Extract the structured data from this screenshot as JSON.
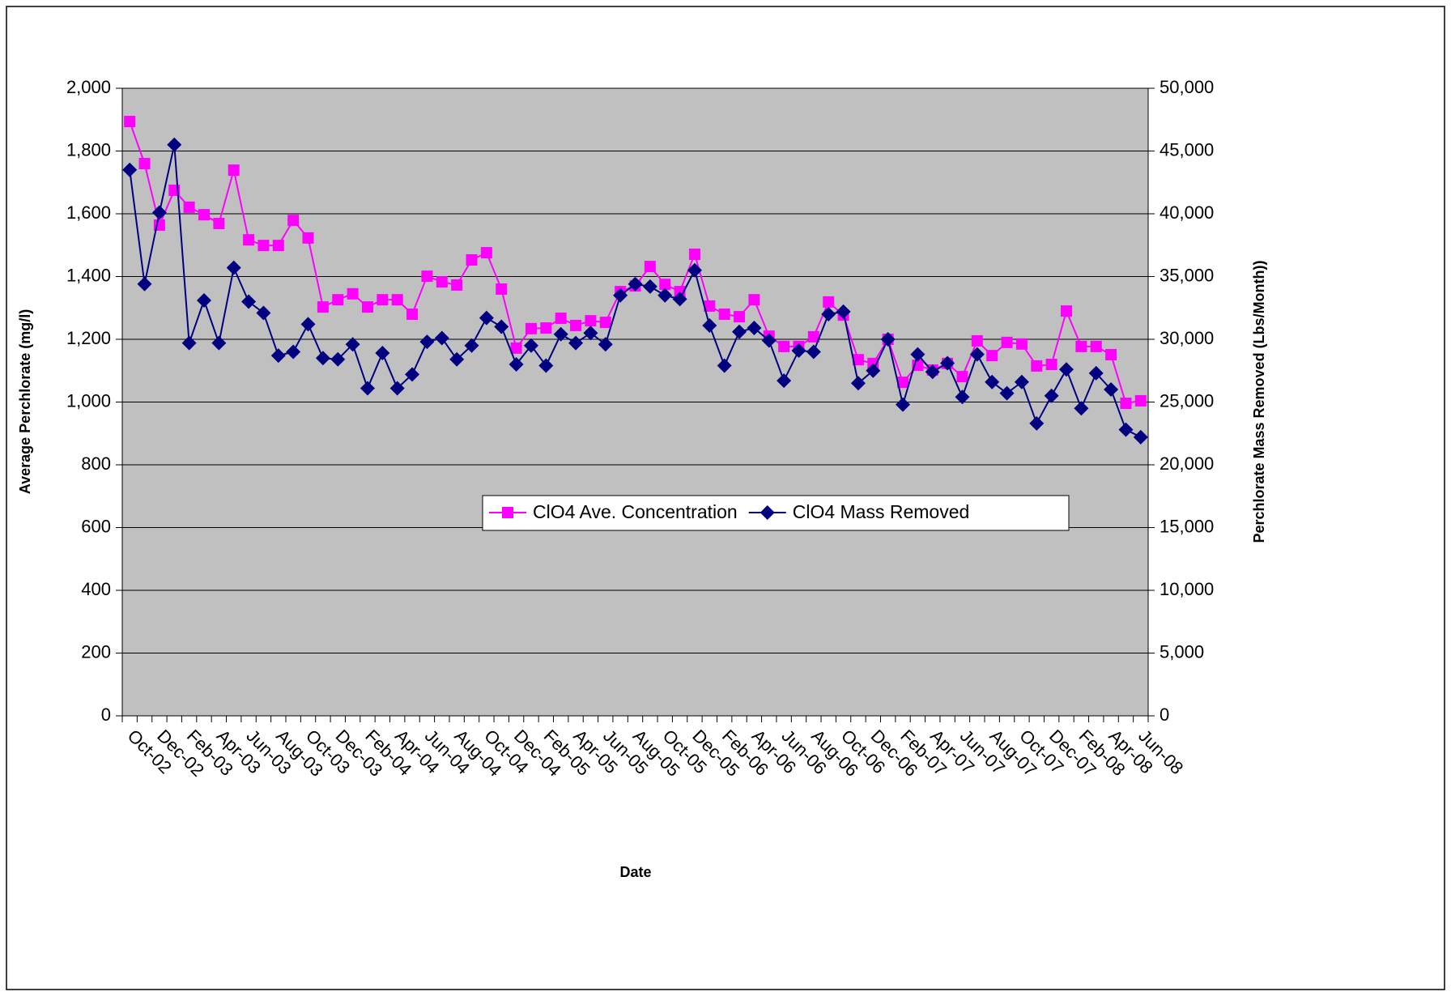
{
  "chart_data": {
    "type": "line",
    "xlabel": "Date",
    "ylabel": "Average Perchlorate (mg/l)",
    "y2label": "Perchlorate Mass Removed (Lbs/Month))",
    "categories": [
      "Oct-02",
      null,
      "Dec-02",
      null,
      "Feb-03",
      null,
      "Apr-03",
      null,
      "Jun-03",
      null,
      "Aug-03",
      null,
      "Oct-03",
      null,
      "Dec-03",
      null,
      "Feb-04",
      null,
      "Apr-04",
      null,
      "Jun-04",
      null,
      "Aug-04",
      null,
      "Oct-04",
      null,
      "Dec-04",
      null,
      "Feb-05",
      null,
      "Apr-05",
      null,
      "Jun-05",
      null,
      "Aug-05",
      null,
      "Oct-05",
      null,
      "Dec-05",
      null,
      "Feb-06",
      null,
      "Apr-06",
      null,
      "Jun-06",
      null,
      "Aug-06",
      null,
      "Oct-06",
      null,
      "Dec-06",
      null,
      "Feb-07",
      null,
      "Apr-07",
      null,
      "Jun-07",
      null,
      "Aug-07",
      null,
      "Oct-07",
      null,
      "Dec-07",
      null,
      "Feb-08",
      null,
      "Apr-08",
      null,
      "Jun-08"
    ],
    "series": [
      {
        "name": "ClO4 Ave. Concentration",
        "color": "#ff00ff",
        "marker": "square",
        "values": [
          1894,
          1760,
          1564,
          1675,
          1621,
          1597,
          1569,
          1739,
          1517,
          1499,
          1499,
          1579,
          1523,
          1303,
          1326,
          1345,
          1303,
          1326,
          1326,
          1280,
          1401,
          1383,
          1373,
          1453,
          1476,
          1360,
          1172,
          1234,
          1236,
          1267,
          1244,
          1259,
          1254,
          1352,
          1370,
          1432,
          1375,
          1352,
          1471,
          1306,
          1280,
          1272,
          1326,
          1210,
          1177,
          1177,
          1208,
          1319,
          1277,
          1135,
          1123,
          1200,
          1063,
          1117,
          1102,
          1123,
          1081,
          1195,
          1148,
          1190,
          1185,
          1115,
          1120,
          1290,
          1177,
          1177,
          1151,
          996,
          1004
        ]
      },
      {
        "name": "ClO4 Mass Removed",
        "color": "#000080",
        "marker": "diamond",
        "axis": "y2",
        "values": [
          43500,
          34400,
          40100,
          45500,
          29700,
          33100,
          29700,
          35700,
          33000,
          32100,
          28700,
          29000,
          31200,
          28500,
          28400,
          29600,
          26100,
          28900,
          26100,
          27200,
          29800,
          30100,
          28400,
          29500,
          31700,
          31000,
          28000,
          29500,
          27900,
          30400,
          29700,
          30500,
          29600,
          33500,
          34400,
          34200,
          33500,
          33200,
          35500,
          31100,
          27900,
          30600,
          30900,
          29900,
          26700,
          29100,
          29000,
          32000,
          32200,
          26500,
          27500,
          30000,
          24800,
          28800,
          27400,
          28100,
          25400,
          28800,
          26600,
          25700,
          26600,
          23300,
          25500,
          27600,
          24500,
          27300,
          26000,
          22800,
          22200
        ]
      }
    ],
    "ylim": [
      0,
      2000
    ],
    "yticks": [
      0,
      200,
      400,
      600,
      800,
      {
        "value": 1000,
        "label": "1,000"
      },
      {
        "value": 1200,
        "label": "1,200"
      },
      {
        "value": 1400,
        "label": "1,400"
      },
      {
        "value": 1600,
        "label": "1,600"
      },
      {
        "value": 1800,
        "label": "1,800"
      },
      {
        "value": 2000,
        "label": "2,000"
      }
    ],
    "y2lim": [
      0,
      50000
    ],
    "y2ticks": [
      0,
      {
        "value": 5000,
        "label": "5,000"
      },
      {
        "value": 10000,
        "label": "10,000"
      },
      {
        "value": 15000,
        "label": "15,000"
      },
      {
        "value": 20000,
        "label": "20,000"
      },
      {
        "value": 25000,
        "label": "25,000"
      },
      {
        "value": 30000,
        "label": "30,000"
      },
      {
        "value": 35000,
        "label": "35,000"
      },
      {
        "value": 40000,
        "label": "40,000"
      },
      {
        "value": 45000,
        "label": "45,000"
      },
      {
        "value": 50000,
        "label": "50,000"
      }
    ],
    "grid": true,
    "plot_background": "#c0c0c0"
  }
}
